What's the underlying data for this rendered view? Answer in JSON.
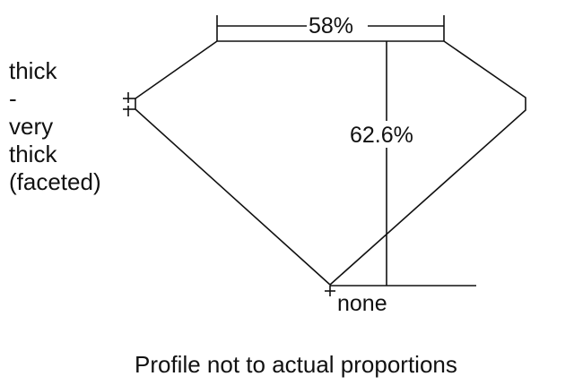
{
  "diagram": {
    "table_label": "58%",
    "depth_label": "62.6%",
    "culet_label": "none",
    "girdle_label_lines": [
      "thick",
      "-",
      "very",
      "thick",
      "(faceted)"
    ],
    "caption": "Profile not to actual proportions",
    "line_color": "#111111"
  }
}
